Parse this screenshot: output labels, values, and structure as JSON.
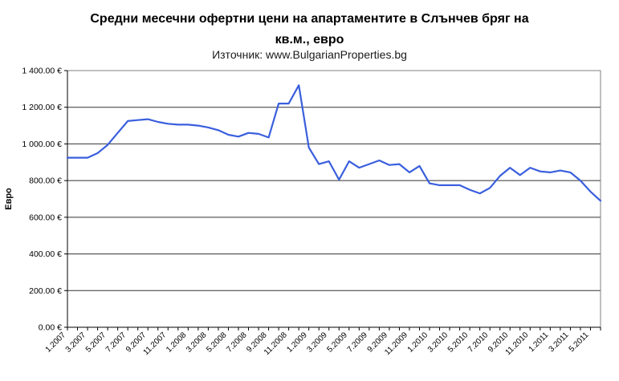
{
  "header": {
    "title_line1": "Средни месечни офертни цени на апартаментите в Слънчев бряг на",
    "title_line2": "кв.м., евро",
    "subtitle": "Източник: www.BulgarianProperties.bg"
  },
  "colors": {
    "line": "#3a5fdd",
    "plot_border": "#808080",
    "gridline": "#333333",
    "axis": "#000000",
    "text": "#000000"
  },
  "chart_data": {
    "type": "line",
    "title": "Средни месечни офертни цени на апартаментите в Слънчев бряг на кв.м., евро",
    "subtitle": "Източник: www.BulgarianProperties.bg",
    "xlabel": "",
    "ylabel": "Евро",
    "ylim": [
      0,
      1400
    ],
    "ytick_step": 200,
    "ytick_labels": [
      "0.00 €",
      "200.00 €",
      "400.00 €",
      "600.00 €",
      "800.00 €",
      "1 000.00 €",
      "1 200.00 €",
      "1 400.00 €"
    ],
    "x_label_every": 2,
    "grid": true,
    "legend": false,
    "line_color": "#3a5fdd",
    "categories": [
      "1.2007",
      "2.2007",
      "3.2007",
      "4.2007",
      "5.2007",
      "6.2007",
      "7.2007",
      "8.2007",
      "9.2007",
      "10.2007",
      "11.2007",
      "12.2007",
      "1.2008",
      "2.2008",
      "3.2008",
      "4.2008",
      "5.2008",
      "6.2008",
      "7.2008",
      "8.2008",
      "9.2008",
      "10.2008",
      "11.2008",
      "12.2008",
      "1.2009",
      "2.2009",
      "3.2009",
      "4.2009",
      "5.2009",
      "6.2009",
      "7.2009",
      "8.2009",
      "9.2009",
      "10.2009",
      "11.2009",
      "12.2009",
      "1.2010",
      "2.2010",
      "3.2010",
      "4.2010",
      "5.2010",
      "6.2010",
      "7.2010",
      "8.2010",
      "9.2010",
      "10.2010",
      "11.2010",
      "12.2010",
      "1.2011",
      "2.2011",
      "3.2011",
      "4.2011",
      "5.2011",
      "6.2011"
    ],
    "values": [
      925,
      925,
      925,
      950,
      995,
      1060,
      1125,
      1130,
      1135,
      1120,
      1110,
      1105,
      1105,
      1100,
      1090,
      1075,
      1050,
      1040,
      1060,
      1055,
      1035,
      1220,
      1220,
      1320,
      980,
      890,
      905,
      805,
      905,
      870,
      890,
      910,
      885,
      890,
      845,
      880,
      785,
      775,
      775,
      775,
      750,
      730,
      760,
      825,
      870,
      830,
      870,
      850,
      845,
      855,
      845,
      800,
      740,
      690
    ]
  }
}
